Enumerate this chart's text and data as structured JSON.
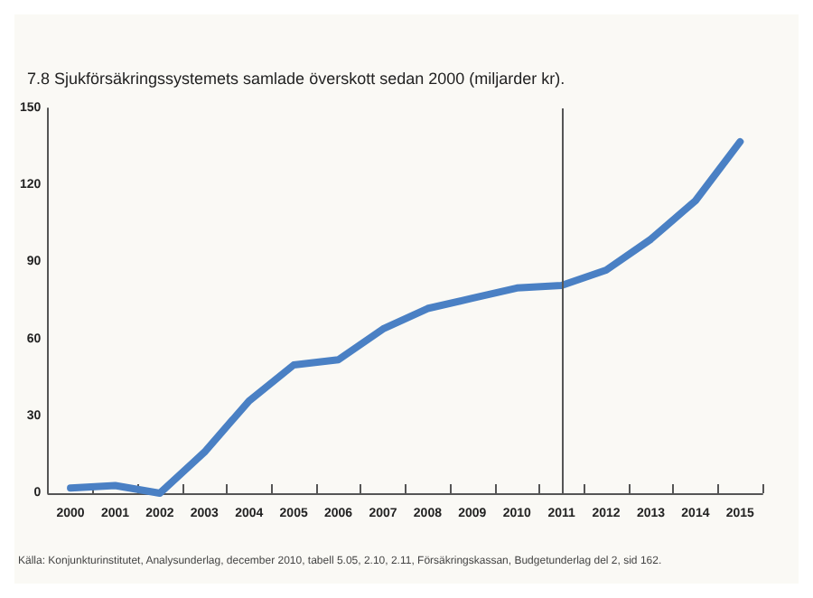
{
  "chart_data": {
    "type": "line",
    "title": "7.8 Sjukförsäkringssystemets samlade överskott sedan 2000 (miljarder kr).",
    "categories": [
      "2000",
      "2001",
      "2002",
      "2003",
      "2004",
      "2005",
      "2006",
      "2007",
      "2008",
      "2009",
      "2010",
      "2011",
      "2012",
      "2013",
      "2014",
      "2015"
    ],
    "values": [
      2,
      3,
      0,
      16,
      36,
      50,
      52,
      64,
      72,
      76,
      80,
      81,
      87,
      99,
      114,
      137
    ],
    "color": "#4a80c4",
    "ylim": [
      0,
      150
    ],
    "yticks": [
      0,
      30,
      60,
      90,
      120,
      150
    ],
    "grid": false,
    "ref_lines": [
      {
        "axis": "x",
        "value": "2011",
        "color": "#555555"
      }
    ],
    "annotations": [
      "Källa: Konjunkturinstitutet, Analysunderlag, december 2010, tabell 5.05, 2.10, 2.11, Försäkringskassan, Budgetunderlag del 2, sid 162."
    ]
  }
}
